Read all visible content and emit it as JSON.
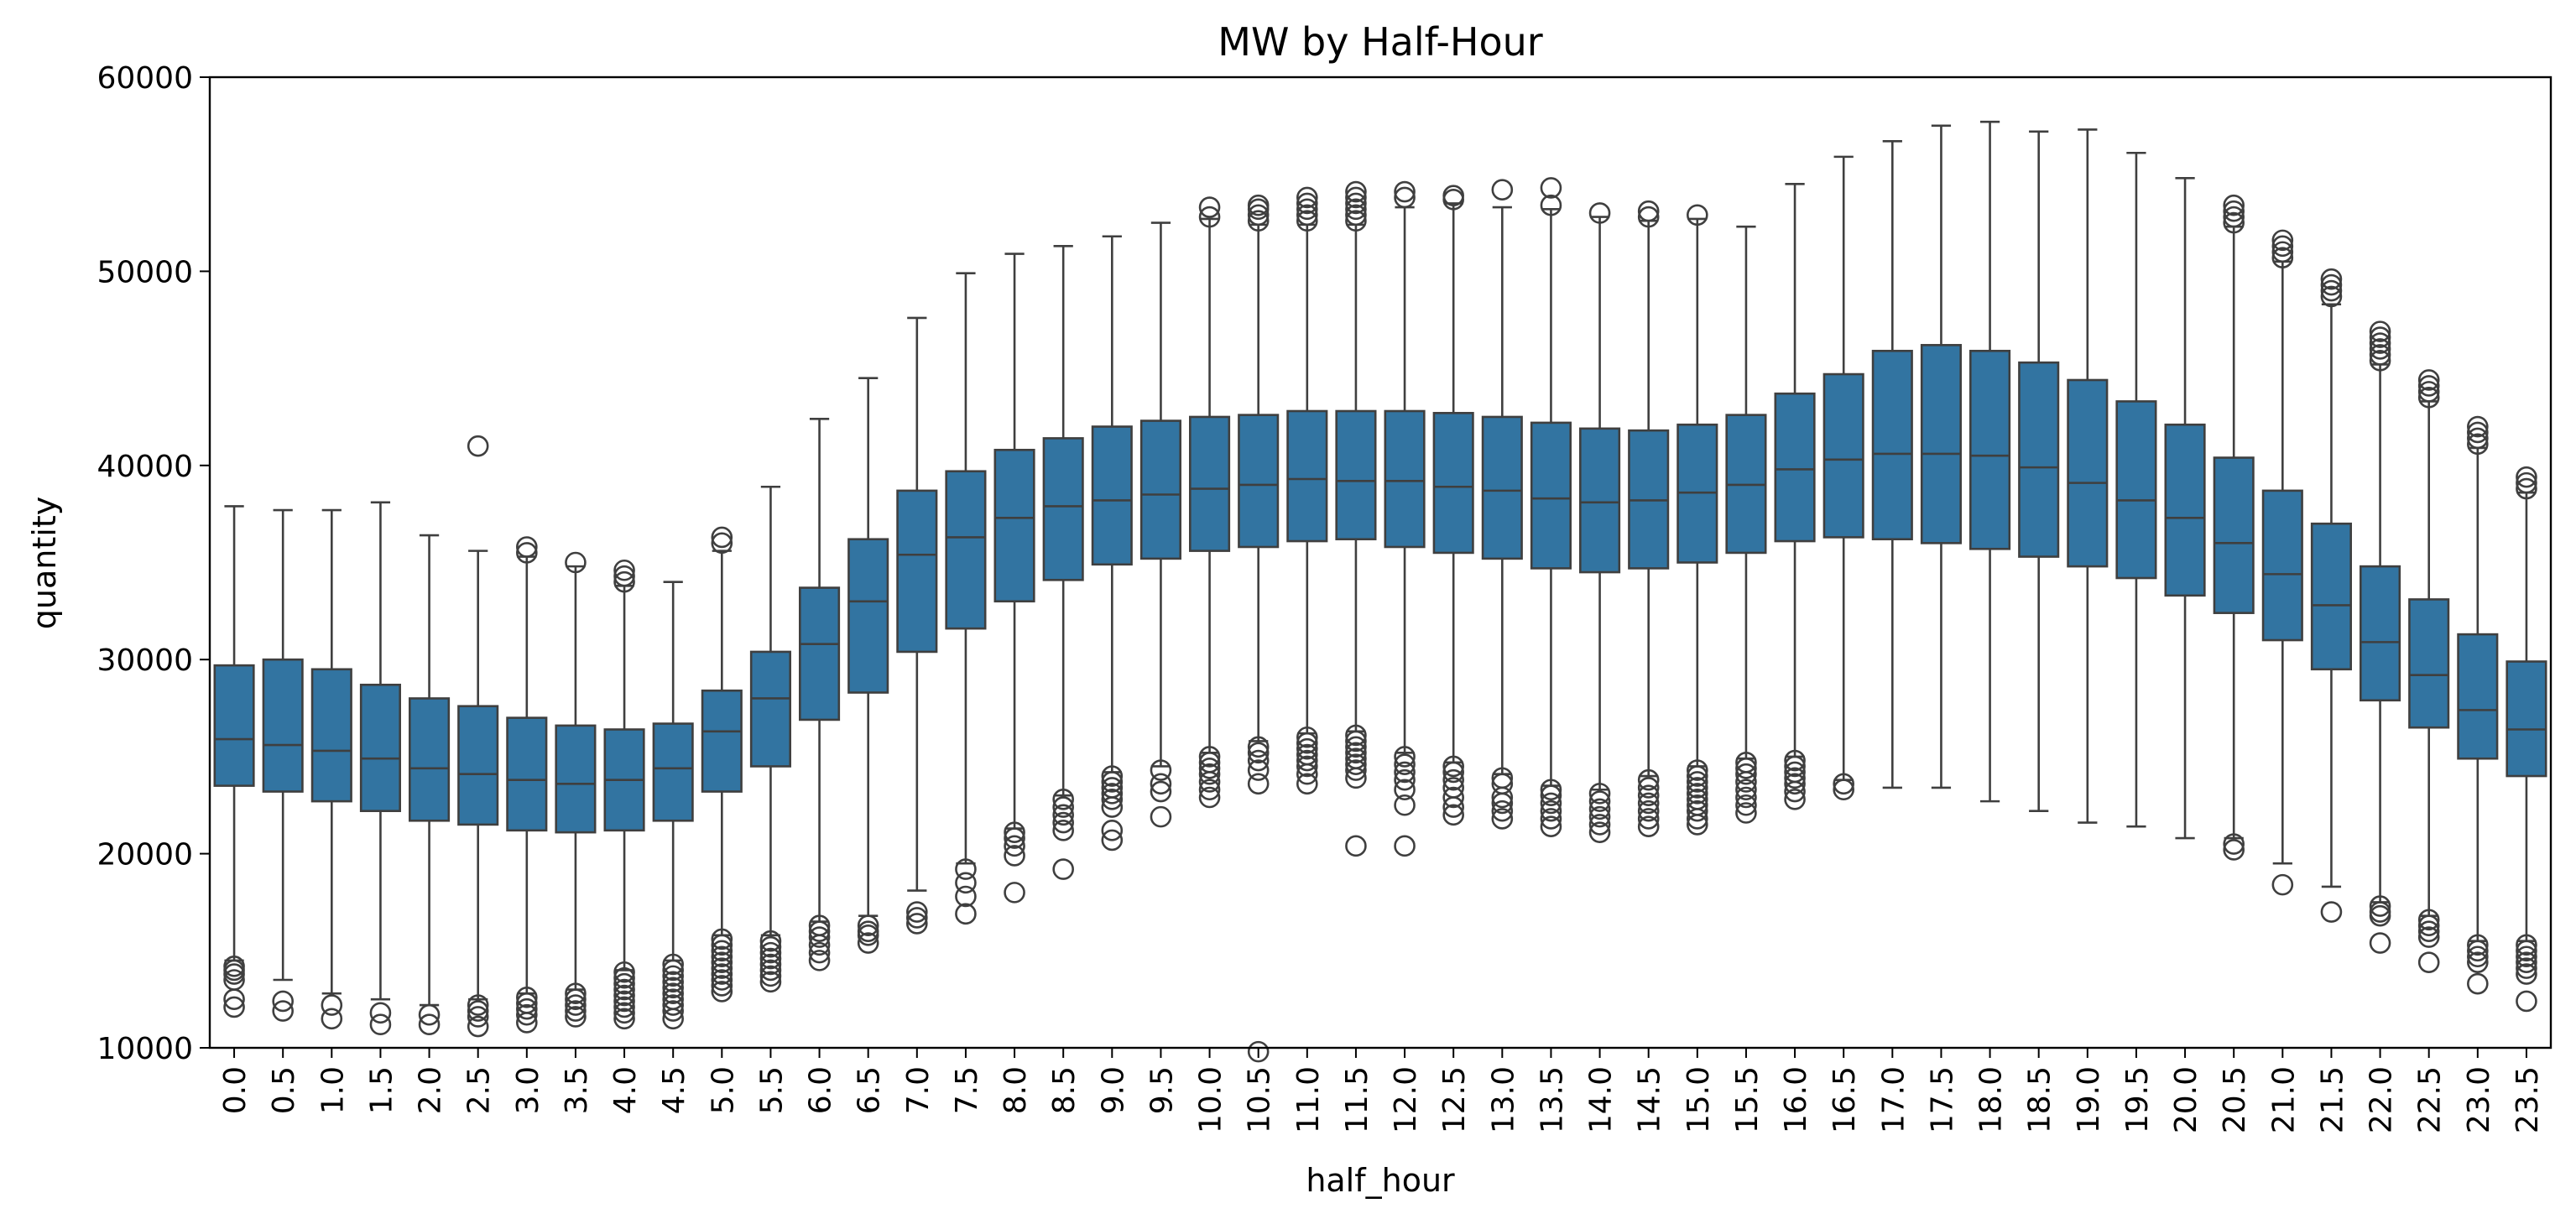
{
  "chart_data": {
    "type": "box",
    "title": "MW by Half-Hour",
    "xlabel": "half_hour",
    "ylabel": "quantity",
    "ylim": [
      10000,
      60000
    ],
    "yticks": [
      "10000",
      "20000",
      "30000",
      "40000",
      "50000",
      "60000"
    ],
    "box_color": "#3274a1",
    "line_color": "#3f3f3f",
    "grid": false,
    "categories": [
      "0.0",
      "0.5",
      "1.0",
      "1.5",
      "2.0",
      "2.5",
      "3.0",
      "3.5",
      "4.0",
      "4.5",
      "5.0",
      "5.5",
      "6.0",
      "6.5",
      "7.0",
      "7.5",
      "8.0",
      "8.5",
      "9.0",
      "9.5",
      "10.0",
      "10.5",
      "11.0",
      "11.5",
      "12.0",
      "12.5",
      "13.0",
      "13.5",
      "14.0",
      "14.5",
      "15.0",
      "15.5",
      "16.0",
      "16.5",
      "17.0",
      "17.5",
      "18.0",
      "18.5",
      "19.0",
      "19.5",
      "20.0",
      "20.5",
      "21.0",
      "21.5",
      "22.0",
      "22.5",
      "23.0",
      "23.5"
    ],
    "boxes": [
      {
        "whisker_low": 14500,
        "q1": 23500,
        "median": 25900,
        "q3": 29700,
        "whisker_high": 37900,
        "outliers": [
          14200,
          14000,
          13800,
          13500,
          12500,
          12100
        ]
      },
      {
        "whisker_low": 13500,
        "q1": 23200,
        "median": 25600,
        "q3": 30000,
        "whisker_high": 37700,
        "outliers": [
          12400,
          11900
        ]
      },
      {
        "whisker_low": 12800,
        "q1": 22700,
        "median": 25300,
        "q3": 29500,
        "whisker_high": 37700,
        "outliers": [
          12200,
          11500
        ]
      },
      {
        "whisker_low": 12500,
        "q1": 22200,
        "median": 24900,
        "q3": 28700,
        "whisker_high": 38100,
        "outliers": [
          11800,
          11200
        ]
      },
      {
        "whisker_low": 12200,
        "q1": 21700,
        "median": 24400,
        "q3": 28000,
        "whisker_high": 36400,
        "outliers": [
          11700,
          11200
        ]
      },
      {
        "whisker_low": 12500,
        "q1": 21500,
        "median": 24100,
        "q3": 27600,
        "whisker_high": 35600,
        "outliers": [
          12200,
          11900,
          11600,
          11100,
          41000
        ]
      },
      {
        "whisker_low": 12800,
        "q1": 21200,
        "median": 23800,
        "q3": 27000,
        "whisker_high": 35300,
        "outliers": [
          12600,
          12300,
          12000,
          11700,
          11300,
          35500,
          35800
        ]
      },
      {
        "whisker_low": 13000,
        "q1": 21100,
        "median": 23600,
        "q3": 26600,
        "whisker_high": 34800,
        "outliers": [
          12800,
          12500,
          12200,
          11900,
          11600,
          35000
        ]
      },
      {
        "whisker_low": 14000,
        "q1": 21200,
        "median": 23800,
        "q3": 26400,
        "whisker_high": 33800,
        "outliers": [
          13900,
          13600,
          13300,
          13000,
          12700,
          12400,
          12100,
          11800,
          11500,
          34000,
          34300,
          34600
        ]
      },
      {
        "whisker_low": 14500,
        "q1": 21700,
        "median": 24400,
        "q3": 26700,
        "whisker_high": 34000,
        "outliers": [
          14300,
          14000,
          13700,
          13400,
          13100,
          12800,
          12500,
          12200,
          11900,
          11500
        ]
      },
      {
        "whisker_low": 15800,
        "q1": 23200,
        "median": 26300,
        "q3": 28400,
        "whisker_high": 35600,
        "outliers": [
          15600,
          15300,
          15000,
          14700,
          14400,
          14100,
          13800,
          13500,
          13200,
          12900,
          36000,
          36300
        ]
      },
      {
        "whisker_low": 15800,
        "q1": 24500,
        "median": 28000,
        "q3": 30400,
        "whisker_high": 38900,
        "outliers": [
          15500,
          15200,
          14900,
          14600,
          14300,
          14000,
          13700,
          13400
        ]
      },
      {
        "whisker_low": 16500,
        "q1": 26900,
        "median": 30800,
        "q3": 33700,
        "whisker_high": 42400,
        "outliers": [
          16300,
          16000,
          15700,
          15300,
          14900,
          14500
        ]
      },
      {
        "whisker_low": 16800,
        "q1": 28300,
        "median": 33000,
        "q3": 36200,
        "whisker_high": 44500,
        "outliers": [
          16300,
          16000,
          15800,
          15400
        ]
      },
      {
        "whisker_low": 18100,
        "q1": 30400,
        "median": 35400,
        "q3": 38700,
        "whisker_high": 47600,
        "outliers": [
          17000,
          16700,
          16400
        ]
      },
      {
        "whisker_low": 19500,
        "q1": 31600,
        "median": 36300,
        "q3": 39700,
        "whisker_high": 49900,
        "outliers": [
          19200,
          18500,
          17800,
          16900
        ]
      },
      {
        "whisker_low": 21300,
        "q1": 33000,
        "median": 37300,
        "q3": 40800,
        "whisker_high": 50900,
        "outliers": [
          21100,
          20800,
          20400,
          19900,
          18000
        ]
      },
      {
        "whisker_low": 23000,
        "q1": 34100,
        "median": 37900,
        "q3": 41400,
        "whisker_high": 51300,
        "outliers": [
          22800,
          22400,
          22000,
          21600,
          21200,
          19200
        ]
      },
      {
        "whisker_low": 24200,
        "q1": 34900,
        "median": 38200,
        "q3": 42000,
        "whisker_high": 51800,
        "outliers": [
          24000,
          23700,
          23400,
          23100,
          22800,
          22400,
          21200,
          20700
        ]
      },
      {
        "whisker_low": 24500,
        "q1": 35200,
        "median": 38500,
        "q3": 42300,
        "whisker_high": 52500,
        "outliers": [
          24300,
          23600,
          23200,
          21900
        ]
      },
      {
        "whisker_low": 25200,
        "q1": 35600,
        "median": 38800,
        "q3": 42500,
        "whisker_high": 52700,
        "outliers": [
          25000,
          24700,
          24400,
          24100,
          23700,
          23300,
          22900,
          52800,
          53300
        ]
      },
      {
        "whisker_low": 25800,
        "q1": 35800,
        "median": 39000,
        "q3": 42600,
        "whisker_high": 52400,
        "outliers": [
          25500,
          25200,
          24800,
          24300,
          23600,
          52600,
          52900,
          53200,
          53400,
          9800
        ]
      },
      {
        "whisker_low": 26200,
        "q1": 36100,
        "median": 39300,
        "q3": 42800,
        "whisker_high": 52400,
        "outliers": [
          26000,
          25700,
          25400,
          25100,
          24800,
          24500,
          24100,
          23600,
          52600,
          52900,
          53200,
          53500,
          53800
        ]
      },
      {
        "whisker_low": 26300,
        "q1": 36200,
        "median": 39200,
        "q3": 42800,
        "whisker_high": 52400,
        "outliers": [
          26100,
          25800,
          25500,
          25200,
          24900,
          24600,
          24300,
          23900,
          20400,
          52600,
          52900,
          53200,
          53500,
          53800,
          54100
        ]
      },
      {
        "whisker_low": 25200,
        "q1": 35800,
        "median": 39200,
        "q3": 42800,
        "whisker_high": 53300,
        "outliers": [
          25000,
          24600,
          24200,
          23800,
          23300,
          22500,
          20400,
          53800,
          54100
        ]
      },
      {
        "whisker_low": 24700,
        "q1": 35500,
        "median": 38900,
        "q3": 42700,
        "whisker_high": 53500,
        "outliers": [
          24500,
          24200,
          23800,
          23400,
          22900,
          22400,
          22000,
          53700,
          53900
        ]
      },
      {
        "whisker_low": 24100,
        "q1": 35200,
        "median": 38700,
        "q3": 42500,
        "whisker_high": 53300,
        "outliers": [
          23900,
          23600,
          22900,
          22600,
          22200,
          21800,
          54200
        ]
      },
      {
        "whisker_low": 23500,
        "q1": 34700,
        "median": 38300,
        "q3": 42200,
        "whisker_high": 53200,
        "outliers": [
          23300,
          23000,
          22600,
          22200,
          21800,
          21400,
          53400,
          54300
        ]
      },
      {
        "whisker_low": 23300,
        "q1": 34500,
        "median": 38100,
        "q3": 41900,
        "whisker_high": 52800,
        "outliers": [
          23100,
          22700,
          22300,
          21900,
          21500,
          21100,
          53000
        ]
      },
      {
        "whisker_low": 24000,
        "q1": 34700,
        "median": 38200,
        "q3": 41800,
        "whisker_high": 52600,
        "outliers": [
          23800,
          23400,
          23000,
          22600,
          22200,
          21800,
          21400,
          52800,
          53100
        ]
      },
      {
        "whisker_low": 24500,
        "q1": 35000,
        "median": 38600,
        "q3": 42100,
        "whisker_high": 52700,
        "outliers": [
          24300,
          24000,
          23700,
          23400,
          23100,
          22800,
          22500,
          22200,
          21800,
          21500,
          52900
        ]
      },
      {
        "whisker_low": 24900,
        "q1": 35500,
        "median": 39000,
        "q3": 42600,
        "whisker_high": 52300,
        "outliers": [
          24700,
          24400,
          24100,
          23700,
          23300,
          22900,
          22500,
          22100
        ]
      },
      {
        "whisker_low": 25000,
        "q1": 36100,
        "median": 39800,
        "q3": 43700,
        "whisker_high": 54500,
        "outliers": [
          24800,
          24500,
          24200,
          23900,
          23600,
          23200,
          22800
        ]
      },
      {
        "whisker_low": 23800,
        "q1": 36300,
        "median": 40300,
        "q3": 44700,
        "whisker_high": 55900,
        "outliers": [
          23600,
          23300
        ]
      },
      {
        "whisker_low": 23400,
        "q1": 36200,
        "median": 40600,
        "q3": 45900,
        "whisker_high": 56700,
        "outliers": []
      },
      {
        "whisker_low": 23400,
        "q1": 36000,
        "median": 40600,
        "q3": 46200,
        "whisker_high": 57500,
        "outliers": []
      },
      {
        "whisker_low": 22700,
        "q1": 35700,
        "median": 40500,
        "q3": 45900,
        "whisker_high": 57700,
        "outliers": []
      },
      {
        "whisker_low": 22200,
        "q1": 35300,
        "median": 39900,
        "q3": 45300,
        "whisker_high": 57200,
        "outliers": []
      },
      {
        "whisker_low": 21600,
        "q1": 34800,
        "median": 39100,
        "q3": 44400,
        "whisker_high": 57300,
        "outliers": []
      },
      {
        "whisker_low": 21400,
        "q1": 34200,
        "median": 38200,
        "q3": 43300,
        "whisker_high": 56100,
        "outliers": []
      },
      {
        "whisker_low": 20800,
        "q1": 33300,
        "median": 37300,
        "q3": 42100,
        "whisker_high": 54800,
        "outliers": []
      },
      {
        "whisker_low": 20800,
        "q1": 32400,
        "median": 36000,
        "q3": 40400,
        "whisker_high": 52300,
        "outliers": [
          20500,
          20200,
          52500,
          52800,
          53100,
          53400
        ]
      },
      {
        "whisker_low": 19500,
        "q1": 31000,
        "median": 34400,
        "q3": 38700,
        "whisker_high": 50500,
        "outliers": [
          18400,
          50700,
          51000,
          51300,
          51600
        ]
      },
      {
        "whisker_low": 18300,
        "q1": 29500,
        "median": 32800,
        "q3": 37000,
        "whisker_high": 48300,
        "outliers": [
          17000,
          48700,
          49000,
          49300,
          49600
        ]
      },
      {
        "whisker_low": 17500,
        "q1": 27900,
        "median": 30900,
        "q3": 34800,
        "whisker_high": 45200,
        "outliers": [
          17300,
          17000,
          16800,
          15400,
          45400,
          45700,
          46000,
          46300,
          46600,
          46900
        ]
      },
      {
        "whisker_low": 16800,
        "q1": 26500,
        "median": 29200,
        "q3": 33100,
        "whisker_high": 43300,
        "outliers": [
          16600,
          16300,
          16000,
          15700,
          14400,
          43500,
          43800,
          44100,
          44400
        ]
      },
      {
        "whisker_low": 15500,
        "q1": 24900,
        "median": 27400,
        "q3": 31300,
        "whisker_high": 40900,
        "outliers": [
          15300,
          15000,
          14700,
          14400,
          13300,
          41100,
          41400,
          41700,
          42000
        ]
      },
      {
        "whisker_low": 15500,
        "q1": 24000,
        "median": 26400,
        "q3": 29900,
        "whisker_high": 38600,
        "outliers": [
          15300,
          15000,
          14700,
          14400,
          14100,
          13800,
          12400,
          38800,
          39100,
          39400
        ]
      }
    ]
  }
}
